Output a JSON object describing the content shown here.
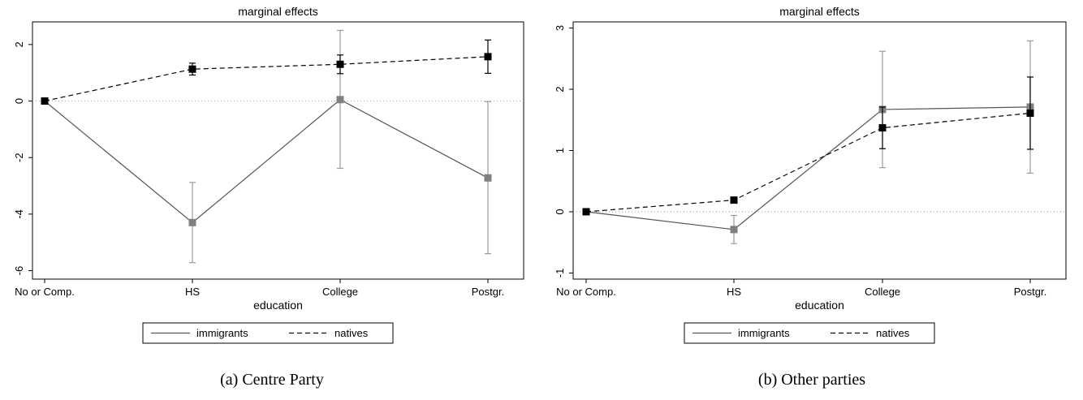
{
  "chart_data": [
    {
      "type": "line",
      "caption": "(a) Centre Party",
      "title": "marginal effects",
      "xlabel": "education",
      "ylabel": "",
      "categories": [
        "No or Comp.",
        "HS",
        "College",
        "Postgr."
      ],
      "ylim": [
        -6.3,
        2.8
      ],
      "yticks": [
        -6,
        -4,
        -2,
        0,
        2
      ],
      "reference_line": 0,
      "grid": false,
      "legend": "bottom",
      "series": [
        {
          "name": "immigrants",
          "style": "solid",
          "color": "#555555",
          "marker_color": "#808080",
          "values": [
            0,
            -4.3,
            0.05,
            -2.72
          ],
          "ci_lower": [
            0,
            -5.72,
            -2.38,
            -5.4
          ],
          "ci_upper": [
            0,
            -2.88,
            2.5,
            -0.02
          ]
        },
        {
          "name": "natives",
          "style": "dashed",
          "color": "#000000",
          "marker_color": "#000000",
          "values": [
            0,
            1.13,
            1.3,
            1.57
          ],
          "ci_lower": [
            0,
            0.92,
            0.97,
            0.98
          ],
          "ci_upper": [
            0,
            1.34,
            1.63,
            2.16
          ]
        }
      ]
    },
    {
      "type": "line",
      "caption": "(b) Other parties",
      "title": "marginal effects",
      "xlabel": "education",
      "ylabel": "",
      "categories": [
        "No or Comp.",
        "HS",
        "College",
        "Postgr."
      ],
      "ylim": [
        -1.1,
        3.1
      ],
      "yticks": [
        -1,
        0,
        1,
        2,
        3
      ],
      "reference_line": 0,
      "grid": false,
      "legend": "bottom",
      "series": [
        {
          "name": "immigrants",
          "style": "solid",
          "color": "#555555",
          "marker_color": "#808080",
          "values": [
            0,
            -0.29,
            1.67,
            1.71
          ],
          "ci_lower": [
            0,
            -0.52,
            0.72,
            0.63
          ],
          "ci_upper": [
            0,
            -0.06,
            2.62,
            2.79
          ]
        },
        {
          "name": "natives",
          "style": "dashed",
          "color": "#000000",
          "marker_color": "#000000",
          "values": [
            0,
            0.19,
            1.37,
            1.61
          ],
          "ci_lower": [
            0,
            0.19,
            1.03,
            1.02
          ],
          "ci_upper": [
            0,
            0.19,
            1.71,
            2.2
          ]
        }
      ]
    }
  ]
}
